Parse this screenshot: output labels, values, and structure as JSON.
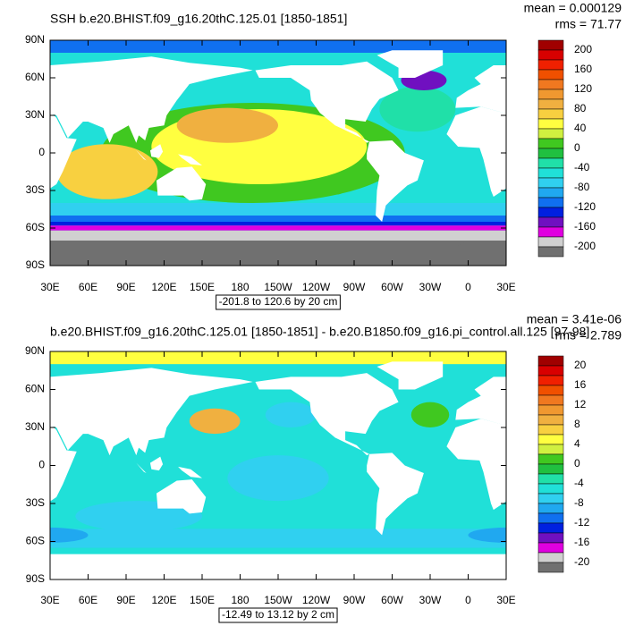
{
  "panels": [
    {
      "title": "SSH b.e20.BHIST.f09_g16.20thC.125.01 [1850-1851]",
      "mean": "mean = 0.000129",
      "rms": "rms = 71.77",
      "lat_labels": [
        "90N",
        "60N",
        "30N",
        "0",
        "30S",
        "60S",
        "90S"
      ],
      "lon_labels": [
        "30E",
        "60E",
        "90E",
        "120E",
        "150E",
        "180",
        "150W",
        "120W",
        "90W",
        "60W",
        "30W",
        "0",
        "30E"
      ],
      "range_label": "-201.8 to 120.6 by 20 cm",
      "colorbar": {
        "labels": [
          200,
          160,
          120,
          80,
          40,
          0,
          -40,
          -80,
          -120,
          -160,
          -200
        ],
        "colors": [
          "#a00000",
          "#d80000",
          "#f02000",
          "#f05000",
          "#f07820",
          "#f09830",
          "#f0b040",
          "#f8d040",
          "#ffff40",
          "#d0f040",
          "#40c820",
          "#20c040",
          "#20e0a8",
          "#20e0d8",
          "#30d0f0",
          "#20a8f0",
          "#1070f0",
          "#0020e0",
          "#7010c0",
          "#e000e0",
          "#d0d0d0",
          "#707070"
        ]
      }
    },
    {
      "title": "b.e20.BHIST.f09_g16.20thC.125.01 [1850-1851] - b.e20.B1850.f09_g16.pi_control.all.125 [97-98]",
      "mean": "mean = 3.41e-06",
      "rms": "rms = 2.789",
      "lat_labels": [
        "90N",
        "60N",
        "30N",
        "0",
        "30S",
        "60S",
        "90S"
      ],
      "lon_labels": [
        "30E",
        "60E",
        "90E",
        "120E",
        "150E",
        "180",
        "150W",
        "120W",
        "90W",
        "60W",
        "30W",
        "0",
        "30E"
      ],
      "range_label": "-12.49 to 13.12 by 2 cm",
      "colorbar": {
        "labels": [
          20,
          16,
          12,
          8,
          4,
          0,
          -4,
          -8,
          -12,
          -16,
          -20
        ],
        "colors": [
          "#a00000",
          "#d80000",
          "#f02000",
          "#f05000",
          "#f07820",
          "#f09830",
          "#f0b040",
          "#f8d040",
          "#ffff40",
          "#d0f040",
          "#40c820",
          "#20c040",
          "#20e0a8",
          "#20e0d8",
          "#30d0f0",
          "#20a8f0",
          "#1070f0",
          "#0020e0",
          "#7010c0",
          "#e000e0",
          "#d0d0d0",
          "#707070"
        ]
      }
    }
  ]
}
